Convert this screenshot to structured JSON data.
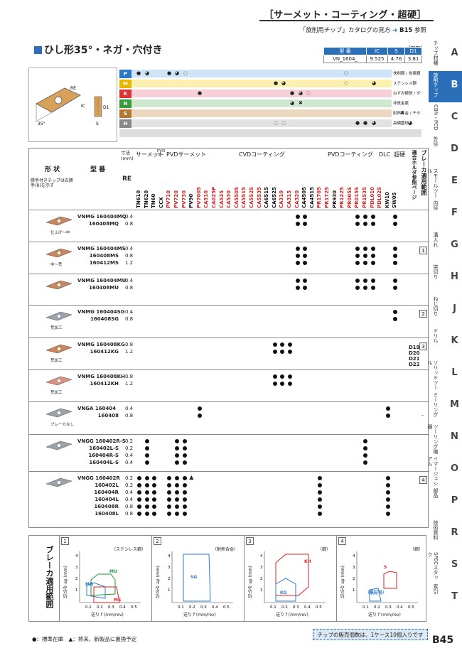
{
  "header": {
    "title": "［サーメット・コーティング・超硬］",
    "ref_text": "「旋削用チップ」カタログの見方",
    "ref_page": "B15",
    "ref_suffix": "参照"
  },
  "section_title": "ひし形35°・ネガ・穴付き",
  "dimensions": {
    "unit": "(mm)",
    "headers": [
      "型 番",
      "IC",
      "S",
      "D1"
    ],
    "values": [
      "VN_1604_",
      "9.525",
      "4.76",
      "3.81"
    ]
  },
  "side_tabs": [
    {
      "jp": "チップ材種",
      "letter": "A"
    },
    {
      "jp": "旋削チップ",
      "letter": "B"
    },
    {
      "jp": "CBN・PCD",
      "letter": "C"
    },
    {
      "jp": "外径",
      "letter": "D"
    },
    {
      "jp": "スモールツール",
      "letter": "E"
    },
    {
      "jp": "内径",
      "letter": "F"
    },
    {
      "jp": "溝入れ",
      "letter": "G"
    },
    {
      "jp": "突切り",
      "letter": "H"
    },
    {
      "jp": "ねじ切り",
      "letter": "J"
    },
    {
      "jp": "ドリル",
      "letter": "K"
    },
    {
      "jp": "ソリッドツール",
      "letter": "L"
    },
    {
      "jp": "ミーリング",
      "letter": "M"
    },
    {
      "jp": "ツーリング機器",
      "letter": "N"
    },
    {
      "jp": "イマージェシアム",
      "letter": "O"
    },
    {
      "jp": "部品",
      "letter": "P"
    },
    {
      "jp": "技術資料",
      "letter": "R"
    },
    {
      "jp": "SPECスタック",
      "letter": "S"
    },
    {
      "jp": "索引",
      "letter": "T"
    }
  ],
  "materials": [
    {
      "code": "P",
      "color": "#2a78c8",
      "bg": "#cfe3f6",
      "label": "快削鋼 / 炭素鋼・合金鋼"
    },
    {
      "code": "M",
      "color": "#e8b800",
      "bg": "#fbf0b0",
      "label": "ステンレス鋼"
    },
    {
      "code": "K",
      "color": "#d33",
      "bg": "#f7cfd6",
      "label": "ねずみ鋳鉄 / ダクタイル鋳鉄"
    },
    {
      "code": "N",
      "color": "#3a9a3a",
      "bg": "#cfe8cf",
      "label": "非鉄金属"
    },
    {
      "code": "S",
      "color": "#b07830",
      "bg": "#ecd8bf",
      "label": "耐熱合金 / チタン合金"
    },
    {
      "code": "H",
      "color": "#888",
      "bg": "#e2e2e2",
      "label": "高硬度材"
    }
  ],
  "table_header": {
    "shape": "形 状",
    "model": "型 番",
    "shape_note": "勝手付きチップは右勝手(R)を示す",
    "dims": "寸法(mm)",
    "re": "RE",
    "cermet": "サーメット",
    "pvd_cermet_short": "PVDサ",
    "pvd_cermet": "PVDサーメット",
    "cvd": "CVDコーティング",
    "pvd": "PVDコーティング",
    "dlc": "DLC",
    "carbide": "超硬",
    "holder": "適合ホルダ参照ページ",
    "breaker": "ブレーカ適用範囲"
  },
  "grades": [
    "TN610",
    "TN620",
    "TN60",
    "CCX",
    "PV710",
    "PV720",
    "PV730",
    "PV90",
    "PV7005",
    "CA510",
    "CA025P",
    "CA525",
    "CA530",
    "CA5505",
    "CA5515",
    "CA5525",
    "CA5535",
    "CA6515",
    "CA6525",
    "CA310",
    "CA315",
    "CA320",
    "CA4505",
    "CA4515",
    "PR1705",
    "PR1725",
    "PR930",
    "PR1225",
    "PR005S",
    "PR015S",
    "PR1535",
    "PDL010",
    "PDL025",
    "KW10",
    "SW05"
  ],
  "products": [
    {
      "codes": [
        "VNMG 160404MQ",
        "160408MQ"
      ],
      "re": [
        "0.4",
        "0.8"
      ],
      "caption": "仕上げ〜中",
      "breaker": ""
    },
    {
      "codes": [
        "VNMG 160404MS",
        "160408MS",
        "160412MS"
      ],
      "re": [
        "0.4",
        "0.8",
        "1.2"
      ],
      "caption": "中〜荒",
      "breaker": "1"
    },
    {
      "codes": [
        "VNMG 160404MU",
        "160408MU"
      ],
      "re": [
        "0.4",
        "0.8"
      ],
      "caption": "",
      "breaker": ""
    },
    {
      "codes": [
        "VNMG 160404SG",
        "160408SG"
      ],
      "re": [
        "0.4",
        "0.8"
      ],
      "caption": "荒加工",
      "breaker": "2"
    },
    {
      "codes": [
        "VNMG 160408KG",
        "160412KG"
      ],
      "re": [
        "0.8",
        "1.2"
      ],
      "caption": "荒加工",
      "breaker": "3"
    },
    {
      "codes": [
        "VNMG 160408KH",
        "160412KH"
      ],
      "re": [
        "0.8",
        "1.2"
      ],
      "caption": "荒加工",
      "breaker": ""
    },
    {
      "codes": [
        "VNGA 160404",
        "160408"
      ],
      "re": [
        "0.4",
        "0.8"
      ],
      "caption": "ブレーカなし",
      "breaker": "-"
    },
    {
      "codes": [
        "VNGG 160402R-S",
        "160402L-S",
        "160404R-S",
        "160404L-S"
      ],
      "re": [
        "0.2",
        "0.2",
        "0.4",
        "0.4"
      ],
      "caption": "",
      "breaker": ""
    },
    {
      "codes": [
        "VNGG 160402R",
        "160402L",
        "160404R",
        "160404L",
        "160408R",
        "160408L"
      ],
      "re": [
        "0.2",
        "0.2",
        "0.4",
        "0.4",
        "0.8",
        "0.8"
      ],
      "caption": "",
      "breaker": "4"
    }
  ],
  "holder_pages": [
    "D19",
    "D20",
    "D21",
    "D22"
  ],
  "breaker_panels": [
    {
      "num": "1",
      "title": "（ステンレス鋼）",
      "labels": [
        "MU",
        "MQ",
        "MS"
      ]
    },
    {
      "num": "2",
      "title": "（耐熱合金）",
      "labels": [
        "SG"
      ]
    },
    {
      "num": "3",
      "title": "（鋼）",
      "labels": [
        "KH",
        "KG"
      ]
    },
    {
      "num": "4",
      "title": "（鋼）",
      "labels": [
        "S",
        "（無記号）"
      ]
    }
  ],
  "breaker_axes": {
    "y": "切込み ap (mm)",
    "x": "送り f (mm/rev)",
    "xt": [
      "0.1",
      "0.2",
      "0.3",
      "0.4",
      "0.5"
    ],
    "yt": [
      "1",
      "2",
      "3",
      "4"
    ]
  },
  "breaker_side_title": "ブレーカ適用範囲",
  "legend": "●：標準在庫　▲：将来、新製品に置換予定",
  "note": "チップの販売個数は、1ケース10個入りです",
  "page_num": "B45"
}
